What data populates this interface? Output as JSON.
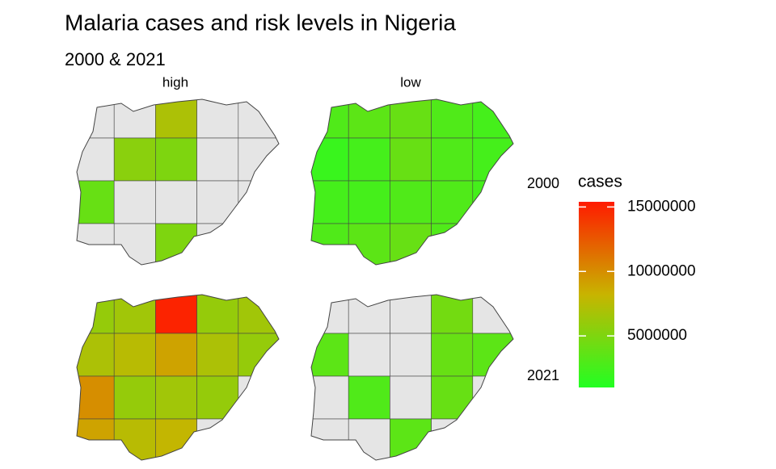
{
  "chart_data": {
    "type": "choropleth",
    "title": "Malaria cases and risk levels in Nigeria",
    "subtitle": "2000 & 2021",
    "facet_columns": [
      "high",
      "low"
    ],
    "facet_rows": [
      "2000",
      "2021"
    ],
    "na_color": "#e5e5e5",
    "panels": [
      {
        "values": [
          null,
          null,
          7000000,
          null,
          null,
          null,
          5500000,
          5000000,
          null,
          null,
          4000000,
          null,
          null,
          null,
          null,
          null,
          null,
          5000000,
          null,
          null
        ]
      },
      {
        "values": [
          3000000,
          3500000,
          4000000,
          3000000,
          2500000,
          2000000,
          2500000,
          4000000,
          3000000,
          2500000,
          2500000,
          2500000,
          3000000,
          3000000,
          2500000,
          3000000,
          3500000,
          4000000,
          3000000,
          null
        ]
      },
      {
        "values": [
          6000000,
          6500000,
          15000000,
          6000000,
          6500000,
          7000000,
          7500000,
          9000000,
          7000000,
          6000000,
          10000000,
          6000000,
          6500000,
          6000000,
          null,
          9000000,
          7500000,
          8000000,
          null,
          null
        ]
      },
      {
        "values": [
          null,
          null,
          null,
          4500000,
          null,
          3500000,
          null,
          null,
          4000000,
          3500000,
          null,
          3000000,
          null,
          4000000,
          null,
          null,
          null,
          3500000,
          null,
          null
        ]
      }
    ],
    "legend": {
      "title": "cases",
      "limits": [
        1000000,
        15400000
      ],
      "ticks": [
        5000000,
        10000000,
        15000000
      ],
      "colors": [
        "#22ff22",
        "#c8b400",
        "#ff1a00"
      ]
    }
  }
}
